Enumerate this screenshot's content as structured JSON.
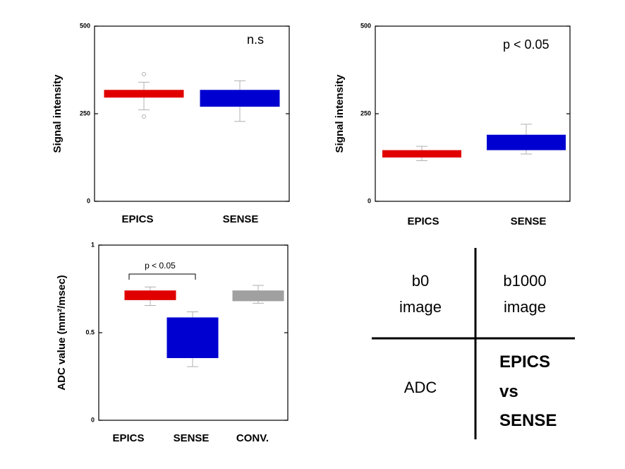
{
  "colors": {
    "epics": "#e00000",
    "sense": "#0000d0",
    "conv": "#a0a0a0",
    "whisker": "#b0b0b0"
  },
  "chart_data": [
    {
      "type": "box",
      "ylabel": "Signal intensity",
      "ylim": [
        0,
        500
      ],
      "yticks": [
        0,
        250,
        500
      ],
      "annotation": "n.s",
      "categories": [
        "EPICS",
        "SENSE"
      ],
      "boxes": [
        {
          "name": "EPICS",
          "q1": 296,
          "q3": 318,
          "min": 261,
          "max": 340,
          "outliers": [
            242,
            363
          ],
          "color": "epics"
        },
        {
          "name": "SENSE",
          "q1": 270,
          "q3": 318,
          "min": 228,
          "max": 344,
          "outliers": [],
          "color": "sense"
        }
      ]
    },
    {
      "type": "box",
      "ylabel": "Signal intensity",
      "ylim": [
        0,
        500
      ],
      "yticks": [
        0,
        250,
        500
      ],
      "annotation": "p < 0.05",
      "categories": [
        "EPICS",
        "SENSE"
      ],
      "boxes": [
        {
          "name": "EPICS",
          "q1": 125,
          "q3": 146,
          "min": 116,
          "max": 157,
          "outliers": [],
          "color": "epics"
        },
        {
          "name": "SENSE",
          "q1": 146,
          "q3": 190,
          "min": 135,
          "max": 220,
          "outliers": [],
          "color": "sense"
        }
      ]
    },
    {
      "type": "box",
      "ylabel": "ADC value (mm²/msec)",
      "ylim": [
        0,
        1
      ],
      "yticks": [
        0,
        0.5,
        1
      ],
      "annotation": "p < 0.05",
      "categories": [
        "EPICS",
        "SENSE",
        "CONV."
      ],
      "boxes": [
        {
          "name": "EPICS",
          "q1": 0.686,
          "q3": 0.741,
          "min": 0.655,
          "max": 0.761,
          "outliers": [],
          "color": "epics"
        },
        {
          "name": "SENSE",
          "q1": 0.355,
          "q3": 0.587,
          "min": 0.306,
          "max": 0.619,
          "outliers": [],
          "color": "sense"
        },
        {
          "name": "CONV.",
          "q1": 0.68,
          "q3": 0.741,
          "min": 0.668,
          "max": 0.77,
          "outliers": [],
          "color": "conv"
        }
      ]
    }
  ],
  "legend_table": {
    "b0": "b0",
    "b1000": "b1000",
    "image": "image",
    "adc": "ADC",
    "compare_line1": "EPICS",
    "compare_line2": "vs",
    "compare_line3": "SENSE"
  }
}
